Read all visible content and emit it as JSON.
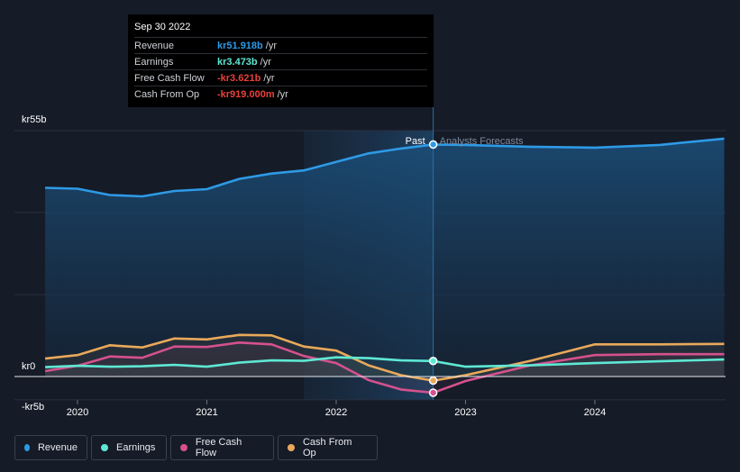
{
  "chart_data": {
    "type": "area",
    "title": "",
    "xlabel": "",
    "ylabel": "",
    "ylim": [
      -5,
      55
    ],
    "y_ticks": [
      {
        "value": 55,
        "label": "kr55b"
      },
      {
        "value": 0,
        "label": "kr0"
      },
      {
        "value": -5,
        "label": "-kr5b"
      }
    ],
    "x_ticks": [
      {
        "value": 2020.0,
        "label": "2020"
      },
      {
        "value": 2021.0,
        "label": "2021"
      },
      {
        "value": 2022.0,
        "label": "2022"
      },
      {
        "value": 2023.0,
        "label": "2023"
      },
      {
        "value": 2024.0,
        "label": "2024"
      }
    ],
    "xlim": [
      2019.5,
      2025.0
    ],
    "past_label": "Past",
    "forecast_label": "Analysts Forecasts",
    "divider_x": 2022.75,
    "highlight_start_x": 2021.75,
    "series": [
      {
        "name": "Revenue",
        "color": "#2e9ae6",
        "x": [
          2019.75,
          2020.0,
          2020.25,
          2020.5,
          2020.75,
          2021.0,
          2021.25,
          2021.5,
          2021.75,
          2022.0,
          2022.25,
          2022.5,
          2022.75,
          2023.0,
          2023.5,
          2024.0,
          2024.5,
          2025.0
        ],
        "y": [
          42.2,
          42.0,
          40.6,
          40.3,
          41.5,
          41.9,
          44.2,
          45.4,
          46.1,
          48.0,
          49.9,
          51.0,
          51.9,
          51.8,
          51.4,
          51.2,
          51.8,
          53.2
        ]
      },
      {
        "name": "Earnings",
        "color": "#5ee8d4",
        "x": [
          2019.75,
          2020.0,
          2020.25,
          2020.5,
          2020.75,
          2021.0,
          2021.25,
          2021.5,
          2021.75,
          2022.0,
          2022.25,
          2022.5,
          2022.75,
          2023.0,
          2023.5,
          2024.0,
          2024.5,
          2025.0
        ],
        "y": [
          2.1,
          2.4,
          2.2,
          2.3,
          2.6,
          2.2,
          3.1,
          3.6,
          3.5,
          4.3,
          4.1,
          3.6,
          3.473,
          2.2,
          2.5,
          3.0,
          3.4,
          3.8
        ]
      },
      {
        "name": "Free Cash Flow",
        "color": "#d5518e",
        "x": [
          2019.75,
          2020.0,
          2020.25,
          2020.5,
          2020.75,
          2021.0,
          2021.25,
          2021.5,
          2021.75,
          2022.0,
          2022.25,
          2022.5,
          2022.75,
          2023.0,
          2023.5,
          2024.0,
          2024.5,
          2025.0
        ],
        "y": [
          1.2,
          2.4,
          4.5,
          4.2,
          6.7,
          6.6,
          7.6,
          7.2,
          4.6,
          3.0,
          -0.8,
          -2.9,
          -3.621,
          -1.0,
          2.5,
          4.8,
          5.0,
          5.0
        ]
      },
      {
        "name": "Cash From Op",
        "color": "#e9a95a",
        "x": [
          2019.75,
          2020.0,
          2020.25,
          2020.5,
          2020.75,
          2021.0,
          2021.25,
          2021.5,
          2021.75,
          2022.0,
          2022.25,
          2022.5,
          2022.75,
          2023.0,
          2023.5,
          2024.0,
          2024.5,
          2025.0
        ],
        "y": [
          4.0,
          4.8,
          7.0,
          6.5,
          8.5,
          8.3,
          9.3,
          9.2,
          6.7,
          5.8,
          2.5,
          0.3,
          -0.919,
          0.3,
          3.5,
          7.2,
          7.2,
          7.3
        ]
      }
    ]
  },
  "tooltip": {
    "date": "Sep 30 2022",
    "rows": [
      {
        "label": "Revenue",
        "value": "kr51.918b",
        "unit": "/yr",
        "color": "#2e9ae6"
      },
      {
        "label": "Earnings",
        "value": "kr3.473b",
        "unit": "/yr",
        "color": "#5ee8d4"
      },
      {
        "label": "Free Cash Flow",
        "value": "-kr3.621b",
        "unit": "/yr",
        "color": "#e8413c"
      },
      {
        "label": "Cash From Op",
        "value": "-kr919.000m",
        "unit": "/yr",
        "color": "#e8413c"
      }
    ]
  },
  "legend": [
    {
      "label": "Revenue",
      "color": "#2e9ae6"
    },
    {
      "label": "Earnings",
      "color": "#5ee8d4"
    },
    {
      "label": "Free Cash Flow",
      "color": "#d5518e"
    },
    {
      "label": "Cash From Op",
      "color": "#e9a95a"
    }
  ]
}
